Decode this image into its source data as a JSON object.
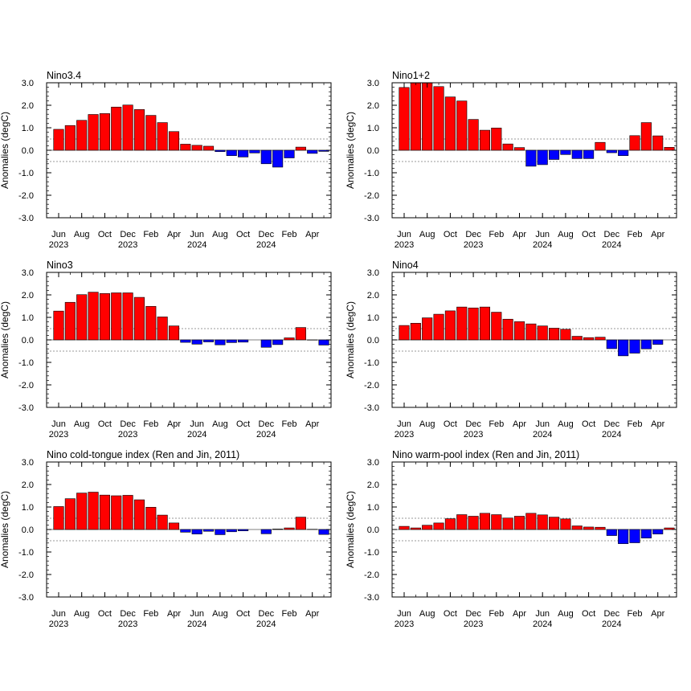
{
  "figure": {
    "ylabel": "Anomalies (degC)",
    "ylim": [
      -3.0,
      3.0
    ],
    "yticks": [
      "3.0",
      "2.0",
      "1.0",
      "0.0",
      "-1.0",
      "-2.0",
      "-3.0"
    ],
    "threshold_lines": [
      0.5,
      -0.5
    ],
    "colors": {
      "positive": "#ff0000",
      "negative": "#0000ff",
      "threshold": "#999999"
    }
  },
  "chart_data": [
    {
      "type": "bar",
      "title": "Nino3.4",
      "ylabel": "Anomalies (degC)",
      "ylim": [
        -3.0,
        3.0
      ],
      "xticks": [
        {
          "index": 0,
          "label": "Jun",
          "year": "2023"
        },
        {
          "index": 2,
          "label": "Aug",
          "year": ""
        },
        {
          "index": 4,
          "label": "Oct",
          "year": ""
        },
        {
          "index": 6,
          "label": "Dec",
          "year": "2023"
        },
        {
          "index": 8,
          "label": "Feb",
          "year": ""
        },
        {
          "index": 10,
          "label": "Apr",
          "year": ""
        },
        {
          "index": 12,
          "label": "Jun",
          "year": "2024"
        },
        {
          "index": 14,
          "label": "Aug",
          "year": ""
        },
        {
          "index": 16,
          "label": "Oct",
          "year": ""
        },
        {
          "index": 18,
          "label": "Dec",
          "year": "2024"
        },
        {
          "index": 20,
          "label": "Feb",
          "year": ""
        },
        {
          "index": 22,
          "label": "Apr",
          "year": ""
        }
      ],
      "values": [
        0.93,
        1.1,
        1.33,
        1.59,
        1.63,
        1.92,
        2.01,
        1.81,
        1.55,
        1.23,
        0.83,
        0.27,
        0.22,
        0.18,
        -0.06,
        -0.24,
        -0.3,
        -0.12,
        -0.6,
        -0.75,
        -0.34,
        0.14,
        -0.14,
        -0.05
      ]
    },
    {
      "type": "bar",
      "title": "Nino1+2",
      "ylabel": "Anomalies (degC)",
      "ylim": [
        -3.0,
        3.0
      ],
      "xticks": [
        {
          "index": 0,
          "label": "Jun",
          "year": "2023"
        },
        {
          "index": 2,
          "label": "Aug",
          "year": ""
        },
        {
          "index": 4,
          "label": "Oct",
          "year": ""
        },
        {
          "index": 6,
          "label": "Dec",
          "year": "2023"
        },
        {
          "index": 8,
          "label": "Feb",
          "year": ""
        },
        {
          "index": 10,
          "label": "Apr",
          "year": ""
        },
        {
          "index": 12,
          "label": "Jun",
          "year": "2024"
        },
        {
          "index": 14,
          "label": "Aug",
          "year": ""
        },
        {
          "index": 16,
          "label": "Oct",
          "year": ""
        },
        {
          "index": 18,
          "label": "Dec",
          "year": "2024"
        },
        {
          "index": 20,
          "label": "Feb",
          "year": ""
        },
        {
          "index": 22,
          "label": "Apr",
          "year": ""
        }
      ],
      "values": [
        2.79,
        2.99,
        2.99,
        2.83,
        2.37,
        2.19,
        1.37,
        0.89,
        0.99,
        0.28,
        0.12,
        -0.71,
        -0.64,
        -0.41,
        -0.19,
        -0.37,
        -0.37,
        0.35,
        -0.11,
        -0.24,
        0.65,
        1.23,
        0.64,
        0.13
      ]
    },
    {
      "type": "bar",
      "title": "Nino3",
      "ylabel": "Anomalies (degC)",
      "ylim": [
        -3.0,
        3.0
      ],
      "xticks": [
        {
          "index": 0,
          "label": "Jun",
          "year": "2023"
        },
        {
          "index": 2,
          "label": "Aug",
          "year": ""
        },
        {
          "index": 4,
          "label": "Oct",
          "year": ""
        },
        {
          "index": 6,
          "label": "Dec",
          "year": "2023"
        },
        {
          "index": 8,
          "label": "Feb",
          "year": ""
        },
        {
          "index": 10,
          "label": "Apr",
          "year": ""
        },
        {
          "index": 12,
          "label": "Jun",
          "year": "2024"
        },
        {
          "index": 14,
          "label": "Aug",
          "year": ""
        },
        {
          "index": 16,
          "label": "Oct",
          "year": ""
        },
        {
          "index": 18,
          "label": "Dec",
          "year": "2024"
        },
        {
          "index": 20,
          "label": "Feb",
          "year": ""
        },
        {
          "index": 22,
          "label": "Apr",
          "year": ""
        }
      ],
      "values": [
        1.28,
        1.67,
        2.01,
        2.12,
        2.06,
        2.09,
        2.09,
        1.89,
        1.49,
        1.02,
        0.62,
        -0.11,
        -0.19,
        -0.09,
        -0.22,
        -0.12,
        -0.1,
        0.0,
        -0.33,
        -0.21,
        0.09,
        0.55,
        -0.01,
        -0.23
      ]
    },
    {
      "type": "bar",
      "title": "Nino4",
      "ylabel": "Anomalies (degC)",
      "ylim": [
        -3.0,
        3.0
      ],
      "xticks": [
        {
          "index": 0,
          "label": "Jun",
          "year": "2023"
        },
        {
          "index": 2,
          "label": "Aug",
          "year": ""
        },
        {
          "index": 4,
          "label": "Oct",
          "year": ""
        },
        {
          "index": 6,
          "label": "Dec",
          "year": "2023"
        },
        {
          "index": 8,
          "label": "Feb",
          "year": ""
        },
        {
          "index": 10,
          "label": "Apr",
          "year": ""
        },
        {
          "index": 12,
          "label": "Jun",
          "year": "2024"
        },
        {
          "index": 14,
          "label": "Aug",
          "year": ""
        },
        {
          "index": 16,
          "label": "Oct",
          "year": ""
        },
        {
          "index": 18,
          "label": "Dec",
          "year": "2024"
        },
        {
          "index": 20,
          "label": "Feb",
          "year": ""
        },
        {
          "index": 22,
          "label": "Apr",
          "year": ""
        }
      ],
      "values": [
        0.64,
        0.74,
        0.98,
        1.14,
        1.29,
        1.46,
        1.42,
        1.46,
        1.23,
        0.92,
        0.81,
        0.71,
        0.62,
        0.52,
        0.47,
        0.16,
        0.1,
        0.12,
        -0.39,
        -0.71,
        -0.59,
        -0.4,
        -0.2,
        0.0
      ]
    },
    {
      "type": "bar",
      "title": "Nino cold-tongue index (Ren and Jin, 2011)",
      "ylabel": "Anomalies (degC)",
      "ylim": [
        -3.0,
        3.0
      ],
      "xticks": [
        {
          "index": 0,
          "label": "Jun",
          "year": "2023"
        },
        {
          "index": 2,
          "label": "Aug",
          "year": ""
        },
        {
          "index": 4,
          "label": "Oct",
          "year": ""
        },
        {
          "index": 6,
          "label": "Dec",
          "year": "2023"
        },
        {
          "index": 8,
          "label": "Feb",
          "year": ""
        },
        {
          "index": 10,
          "label": "Apr",
          "year": ""
        },
        {
          "index": 12,
          "label": "Jun",
          "year": "2024"
        },
        {
          "index": 14,
          "label": "Aug",
          "year": ""
        },
        {
          "index": 16,
          "label": "Oct",
          "year": ""
        },
        {
          "index": 18,
          "label": "Dec",
          "year": "2024"
        },
        {
          "index": 20,
          "label": "Feb",
          "year": ""
        },
        {
          "index": 22,
          "label": "Apr",
          "year": ""
        }
      ],
      "values": [
        1.02,
        1.37,
        1.62,
        1.66,
        1.53,
        1.5,
        1.52,
        1.32,
        0.99,
        0.64,
        0.29,
        -0.12,
        -0.2,
        -0.08,
        -0.23,
        -0.1,
        -0.06,
        0.0,
        -0.19,
        0.02,
        0.07,
        0.55,
        0.01,
        -0.22
      ]
    },
    {
      "type": "bar",
      "title": "Nino warm-pool index (Ren and Jin, 2011)",
      "ylabel": "Anomalies (degC)",
      "ylim": [
        -3.0,
        3.0
      ],
      "xticks": [
        {
          "index": 0,
          "label": "Jun",
          "year": "2023"
        },
        {
          "index": 2,
          "label": "Aug",
          "year": ""
        },
        {
          "index": 4,
          "label": "Oct",
          "year": ""
        },
        {
          "index": 6,
          "label": "Dec",
          "year": "2023"
        },
        {
          "index": 8,
          "label": "Feb",
          "year": ""
        },
        {
          "index": 10,
          "label": "Apr",
          "year": ""
        },
        {
          "index": 12,
          "label": "Jun",
          "year": "2024"
        },
        {
          "index": 14,
          "label": "Aug",
          "year": ""
        },
        {
          "index": 16,
          "label": "Oct",
          "year": ""
        },
        {
          "index": 18,
          "label": "Dec",
          "year": "2024"
        },
        {
          "index": 20,
          "label": "Feb",
          "year": ""
        },
        {
          "index": 22,
          "label": "Apr",
          "year": ""
        }
      ],
      "values": [
        0.14,
        0.07,
        0.19,
        0.29,
        0.48,
        0.66,
        0.59,
        0.72,
        0.66,
        0.51,
        0.59,
        0.72,
        0.65,
        0.55,
        0.47,
        0.16,
        0.11,
        0.1,
        -0.27,
        -0.63,
        -0.59,
        -0.38,
        -0.2,
        0.07
      ]
    }
  ]
}
